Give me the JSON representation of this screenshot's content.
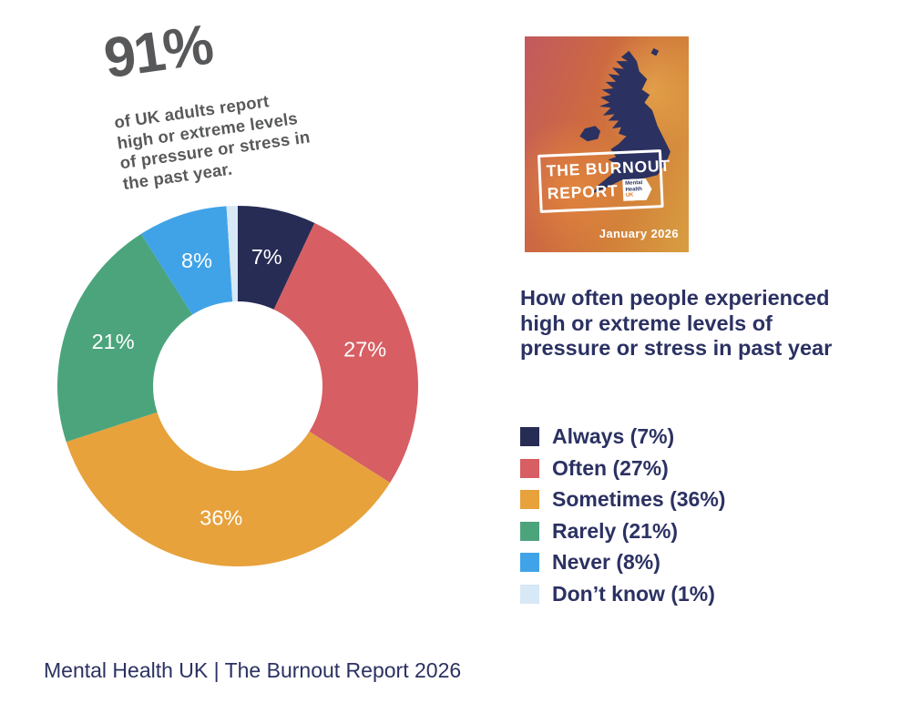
{
  "page": {
    "background": "#ffffff"
  },
  "headline": {
    "stat": "91%",
    "lines": [
      "of UK adults report",
      "high or extreme levels",
      "of pressure or stress in",
      "the past year."
    ],
    "color": "#58595a"
  },
  "chart_data": {
    "type": "pie",
    "variant": "donut",
    "title": "How often people experienced high or extreme levels of pressure or stress in past year",
    "categories": [
      "Always",
      "Often",
      "Sometimes",
      "Rarely",
      "Never",
      "Don’t know"
    ],
    "values": [
      7,
      27,
      36,
      21,
      8,
      1
    ],
    "unit": "%",
    "start_angle_deg": 0,
    "direction": "clockwise",
    "inner_radius_ratio": 0.47,
    "slice_label_color": "#ffffff",
    "legend_position": "right",
    "segments": [
      {
        "label": "Always",
        "value": 7,
        "color": "#272c55",
        "slice_label": "7%",
        "legend": "Always (7%)"
      },
      {
        "label": "Often",
        "value": 27,
        "color": "#d75e63",
        "slice_label": "27%",
        "legend": "Often (27%)"
      },
      {
        "label": "Sometimes",
        "value": 36,
        "color": "#e7a23c",
        "slice_label": "36%",
        "legend": "Sometimes (36%)"
      },
      {
        "label": "Rarely",
        "value": 21,
        "color": "#4ba47c",
        "slice_label": "21%",
        "legend": "Rarely (21%)"
      },
      {
        "label": "Never",
        "value": 8,
        "color": "#40a3e7",
        "slice_label": "8%",
        "legend": "Never (8%)"
      },
      {
        "label": "Don’t know",
        "value": 1,
        "color": "#d7e8f6",
        "slice_label": "",
        "legend": "Don’t know (1%)"
      }
    ]
  },
  "cover": {
    "title_line1": "THE BURNOUT",
    "title_line2": "REPORT",
    "logo": {
      "lines": [
        "Mental",
        "Health",
        "UK"
      ]
    },
    "date": "January 2026",
    "map_color": "#2b3160",
    "gradient": [
      "#c2595f",
      "#cd6a40",
      "#d3823a",
      "#d89e41"
    ]
  },
  "right_panel": {
    "heading_lines": [
      "How often people experienced",
      "high or extreme levels of",
      "pressure or stress in past year"
    ]
  },
  "footer": {
    "text": "Mental Health UK | The Burnout Report 2026"
  }
}
